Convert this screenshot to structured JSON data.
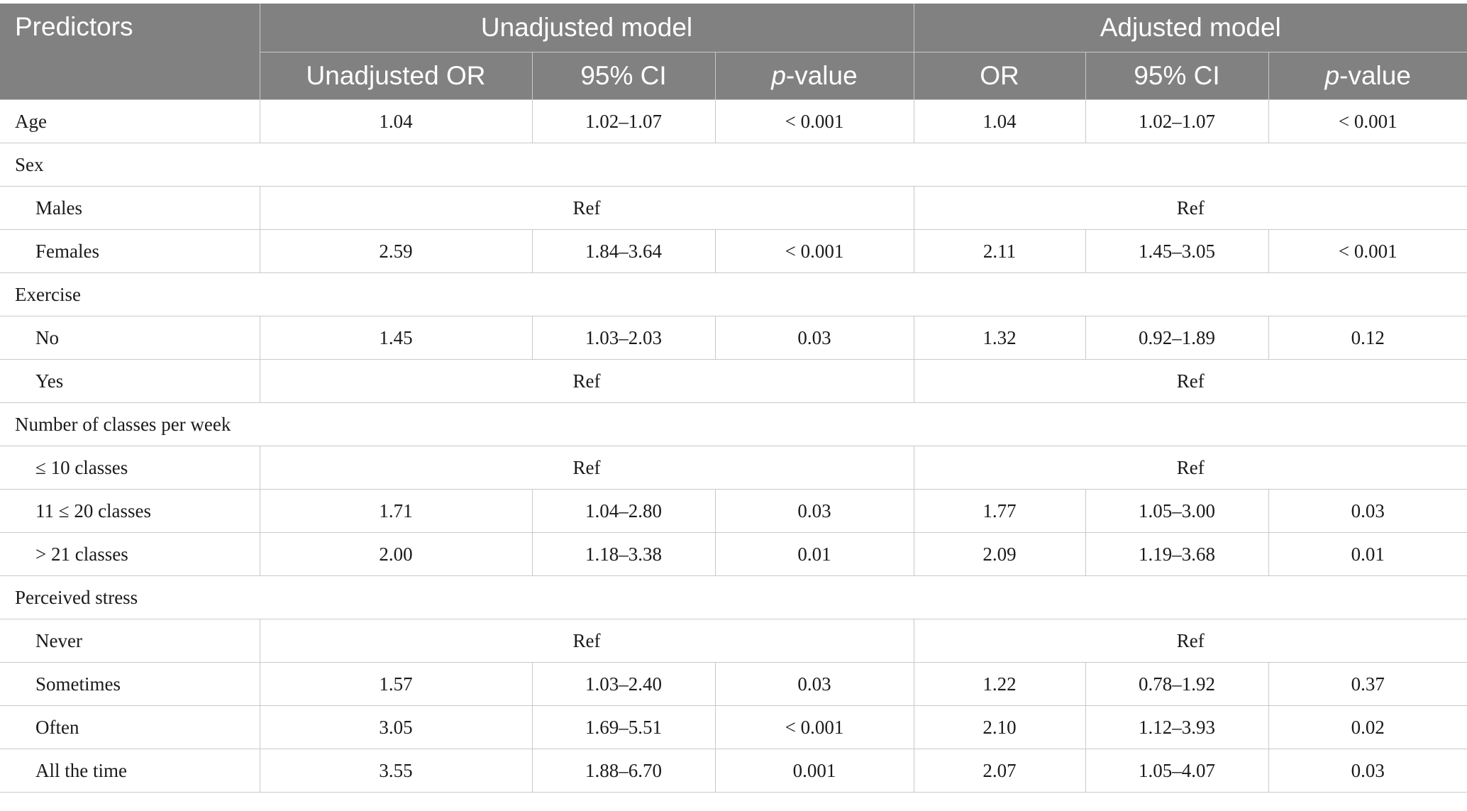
{
  "header": {
    "predictors": "Predictors",
    "unadjusted_group": "Unadjusted model",
    "adjusted_group": "Adjusted model",
    "unadj_or": "Unadjusted OR",
    "ci": "95% CI",
    "p_italic": "p",
    "p_suffix": "-value",
    "adj_or": "OR"
  },
  "rows": {
    "age": {
      "label": "Age",
      "u_or": "1.04",
      "u_ci": "1.02–1.07",
      "u_p": "< 0.001",
      "a_or": "1.04",
      "a_ci": "1.02–1.07",
      "a_p": "< 0.001"
    },
    "sex": {
      "label": "Sex"
    },
    "males": {
      "label": "Males",
      "u_ref": "Ref",
      "a_ref": "Ref"
    },
    "females": {
      "label": "Females",
      "u_or": "2.59",
      "u_ci": "1.84–3.64",
      "u_p": "< 0.001",
      "a_or": "2.11",
      "a_ci": "1.45–3.05",
      "a_p": "< 0.001"
    },
    "exercise": {
      "label": "Exercise"
    },
    "ex_no": {
      "label": "No",
      "u_or": "1.45",
      "u_ci": "1.03–2.03",
      "u_p": "0.03",
      "a_or": "1.32",
      "a_ci": "0.92–1.89",
      "a_p": "0.12"
    },
    "ex_yes": {
      "label": "Yes",
      "u_ref": "Ref",
      "a_ref": "Ref"
    },
    "classes": {
      "label": "Number of classes per week"
    },
    "cl_le10": {
      "label": "≤ 10 classes",
      "u_ref": "Ref",
      "a_ref": "Ref"
    },
    "cl_11_20": {
      "label": "11 ≤ 20 classes",
      "u_or": "1.71",
      "u_ci": "1.04–2.80",
      "u_p": "0.03",
      "a_or": "1.77",
      "a_ci": "1.05–3.00",
      "a_p": "0.03"
    },
    "cl_gt21": {
      "label": "> 21 classes",
      "u_or": "2.00",
      "u_ci": "1.18–3.38",
      "u_p": "0.01",
      "a_or": "2.09",
      "a_ci": "1.19–3.68",
      "a_p": "0.01"
    },
    "stress": {
      "label": "Perceived stress"
    },
    "st_never": {
      "label": "Never",
      "u_ref": "Ref",
      "a_ref": "Ref"
    },
    "st_sometimes": {
      "label": "Sometimes",
      "u_or": "1.57",
      "u_ci": "1.03–2.40",
      "u_p": "0.03",
      "a_or": "1.22",
      "a_ci": "0.78–1.92",
      "a_p": "0.37"
    },
    "st_often": {
      "label": "Often",
      "u_or": "3.05",
      "u_ci": "1.69–5.51",
      "u_p": "< 0.001",
      "a_or": "2.10",
      "a_ci": "1.12–3.93",
      "a_p": "0.02"
    },
    "st_all": {
      "label": "All the time",
      "u_or": "3.55",
      "u_ci": "1.88–6.70",
      "u_p": "0.001",
      "a_or": "2.07",
      "a_ci": "1.05–4.07",
      "a_p": "0.03"
    }
  },
  "colors": {
    "header_bg": "#808180",
    "header_text": "#ffffff",
    "grid": "#c9c9c9"
  }
}
